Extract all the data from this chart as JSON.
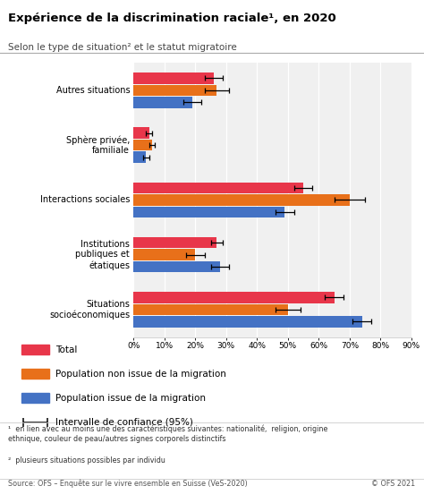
{
  "title": "Expérience de la discrimination raciale¹, en 2020",
  "subtitle": "Selon le type de situation² et le statut migratoire",
  "categories_display": [
    "Autres situations",
    "Sphère privée,\nfamiliale",
    "Interactions sociales",
    "Institutions\npubliques et\nétatiques",
    "Situations\nsocioéconomiques"
  ],
  "series": {
    "Total": {
      "values": [
        26,
        5,
        55,
        27,
        65
      ],
      "errors": [
        3,
        1,
        3,
        2,
        3
      ],
      "color": "#e8364a"
    },
    "Population non issue de la migration": {
      "values": [
        27,
        6,
        70,
        20,
        50
      ],
      "errors": [
        4,
        1,
        5,
        3,
        4
      ],
      "color": "#e8701a"
    },
    "Population issue de la migration": {
      "values": [
        19,
        4,
        49,
        28,
        74
      ],
      "errors": [
        3,
        1,
        3,
        3,
        3
      ],
      "color": "#4472c4"
    }
  },
  "xlim": [
    0,
    90
  ],
  "xticks": [
    0,
    10,
    20,
    30,
    40,
    50,
    60,
    70,
    80,
    90
  ],
  "xtick_labels": [
    "0%",
    "10%",
    "20%",
    "30%",
    "40%",
    "50%",
    "60%",
    "70%",
    "80%",
    "90%"
  ],
  "footnote1": "en lien avec au moins une des caractéristiques suivantes: nationalité,  religion, origine\nethnique, couleur de peau/autres signes corporels distinctifs",
  "footnote2": "plusieurs situations possibles par individu",
  "source": "Source: OFS – Enquête sur le vivre ensemble en Suisse (VeS-2020)",
  "copyright": "© OFS 2021",
  "bar_height": 0.22,
  "background_color": "#f0f0f0"
}
